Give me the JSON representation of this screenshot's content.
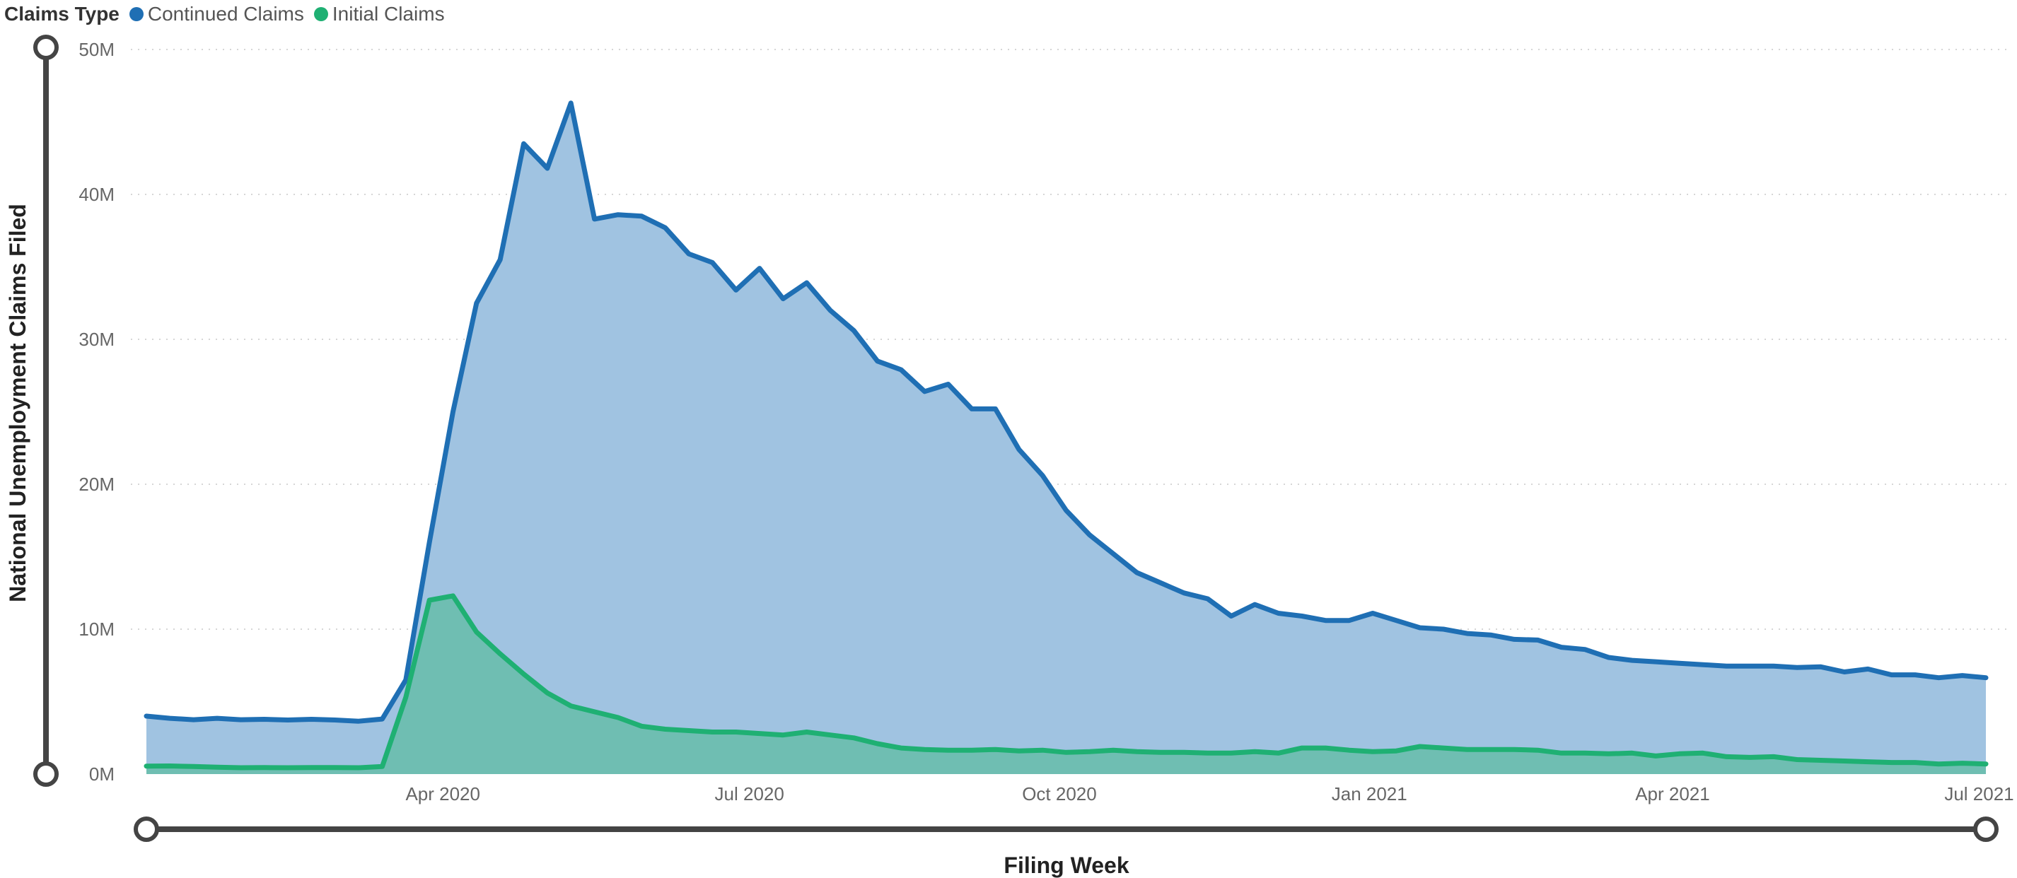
{
  "legend": {
    "title": "Claims Type",
    "items": [
      {
        "label": "Continued Claims",
        "color": "#1f6fb4"
      },
      {
        "label": "Initial Claims",
        "color": "#1fb073"
      }
    ]
  },
  "chart_data": {
    "type": "area",
    "xlabel": "Filing Week",
    "ylabel": "National Unemployment Claims Filed",
    "ylim": [
      0,
      50000000
    ],
    "yticks": [
      {
        "value": 0,
        "label": "0M"
      },
      {
        "value": 10000000,
        "label": "10M"
      },
      {
        "value": 20000000,
        "label": "20M"
      },
      {
        "value": 30000000,
        "label": "30M"
      },
      {
        "value": 40000000,
        "label": "40M"
      },
      {
        "value": 50000000,
        "label": "50M"
      }
    ],
    "xrange": [
      "2020-01-04",
      "2021-07-03"
    ],
    "xticks": [
      {
        "date": "2020-04-01",
        "label": "Apr 2020"
      },
      {
        "date": "2020-07-01",
        "label": "Jul 2020"
      },
      {
        "date": "2020-10-01",
        "label": "Oct 2020"
      },
      {
        "date": "2021-01-01",
        "label": "Jan 2021"
      },
      {
        "date": "2021-04-01",
        "label": "Apr 2021"
      },
      {
        "date": "2021-07-01",
        "label": "Jul 2021"
      }
    ],
    "grid": true,
    "legend_position": "top-left",
    "x": [
      "2020-01-04",
      "2020-01-11",
      "2020-01-18",
      "2020-01-25",
      "2020-02-01",
      "2020-02-08",
      "2020-02-15",
      "2020-02-22",
      "2020-02-29",
      "2020-03-07",
      "2020-03-14",
      "2020-03-21",
      "2020-03-28",
      "2020-04-04",
      "2020-04-11",
      "2020-04-18",
      "2020-04-25",
      "2020-05-02",
      "2020-05-09",
      "2020-05-16",
      "2020-05-23",
      "2020-05-30",
      "2020-06-06",
      "2020-06-13",
      "2020-06-20",
      "2020-06-27",
      "2020-07-04",
      "2020-07-11",
      "2020-07-18",
      "2020-07-25",
      "2020-08-01",
      "2020-08-08",
      "2020-08-15",
      "2020-08-22",
      "2020-08-29",
      "2020-09-05",
      "2020-09-12",
      "2020-09-19",
      "2020-09-26",
      "2020-10-03",
      "2020-10-10",
      "2020-10-17",
      "2020-10-24",
      "2020-10-31",
      "2020-11-07",
      "2020-11-14",
      "2020-11-21",
      "2020-11-28",
      "2020-12-05",
      "2020-12-12",
      "2020-12-19",
      "2020-12-26",
      "2021-01-02",
      "2021-01-09",
      "2021-01-16",
      "2021-01-23",
      "2021-01-30",
      "2021-02-06",
      "2021-02-13",
      "2021-02-20",
      "2021-02-27",
      "2021-03-06",
      "2021-03-13",
      "2021-03-20",
      "2021-03-27",
      "2021-04-03",
      "2021-04-10",
      "2021-04-17",
      "2021-04-24",
      "2021-05-01",
      "2021-05-08",
      "2021-05-15",
      "2021-05-22",
      "2021-05-29",
      "2021-06-05",
      "2021-06-12",
      "2021-06-19",
      "2021-06-26",
      "2021-07-03"
    ],
    "series": [
      {
        "name": "Continued Claims",
        "color": "#1f6fb4",
        "fill": "#a0c3e1",
        "values": [
          4000000,
          3850000,
          3750000,
          3850000,
          3750000,
          3780000,
          3730000,
          3780000,
          3730000,
          3650000,
          3800000,
          6500000,
          16000000,
          25000000,
          32500000,
          35500000,
          43500000,
          41800000,
          46300000,
          38300000,
          38600000,
          38500000,
          37700000,
          35900000,
          35300000,
          33400000,
          34900000,
          32800000,
          33900000,
          32000000,
          30600000,
          28500000,
          27900000,
          26400000,
          26900000,
          25200000,
          25200000,
          22400000,
          20600000,
          18200000,
          16500000,
          15200000,
          13900000,
          13200000,
          12500000,
          12100000,
          10900000,
          11700000,
          11100000,
          10900000,
          10600000,
          10600000,
          11100000,
          10600000,
          10100000,
          10000000,
          9700000,
          9600000,
          9300000,
          9250000,
          8750000,
          8600000,
          8050000,
          7850000,
          7750000,
          7650000,
          7550000,
          7450000,
          7450000,
          7450000,
          7350000,
          7400000,
          7050000,
          7250000,
          6850000,
          6850000,
          6650000,
          6800000,
          6650000
        ]
      },
      {
        "name": "Initial Claims",
        "color": "#1fb073",
        "fill": "#6fbeb2",
        "values": [
          550000,
          560000,
          520000,
          480000,
          440000,
          450000,
          440000,
          450000,
          450000,
          440000,
          520000,
          5300000,
          12000000,
          12300000,
          9800000,
          8300000,
          6900000,
          5600000,
          4700000,
          4300000,
          3900000,
          3300000,
          3100000,
          3000000,
          2900000,
          2900000,
          2800000,
          2700000,
          2900000,
          2700000,
          2500000,
          2100000,
          1800000,
          1700000,
          1650000,
          1650000,
          1700000,
          1600000,
          1650000,
          1500000,
          1550000,
          1650000,
          1550000,
          1500000,
          1500000,
          1450000,
          1450000,
          1550000,
          1450000,
          1800000,
          1800000,
          1650000,
          1550000,
          1600000,
          1900000,
          1800000,
          1700000,
          1700000,
          1700000,
          1650000,
          1450000,
          1450000,
          1400000,
          1450000,
          1250000,
          1400000,
          1450000,
          1200000,
          1150000,
          1200000,
          1000000,
          950000,
          900000,
          850000,
          800000,
          800000,
          700000,
          750000,
          700000
        ]
      }
    ]
  }
}
